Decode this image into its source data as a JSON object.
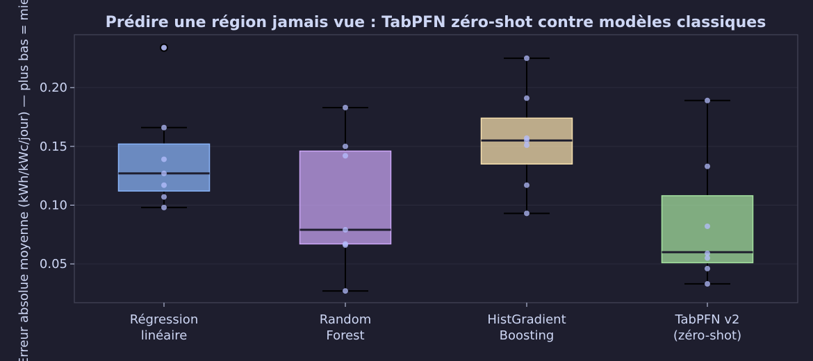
{
  "chart_data": {
    "type": "box",
    "title": "Prédire une région jamais vue : TabPFN zéro-shot contre modèles classiques",
    "xlabel": "",
    "ylabel": "Erreur absolue moyenne (kWh/kWc/jour) — plus bas = mieux",
    "ylim": [
      0.017,
      0.245
    ],
    "yticks": [
      0.05,
      0.1,
      0.15,
      0.2
    ],
    "ytick_labels": [
      "0.05",
      "0.10",
      "0.15",
      "0.20"
    ],
    "grid": true,
    "categories": [
      [
        "Régression",
        "linéaire"
      ],
      [
        "Random",
        "Forest"
      ],
      [
        "HistGradient",
        "Boosting"
      ],
      [
        "TabPFN v2",
        "(zéro-shot)"
      ]
    ],
    "series": [
      {
        "color": "#89b4fa",
        "whisker_low": 0.098,
        "q1": 0.112,
        "median": 0.127,
        "q3": 0.152,
        "whisker_high": 0.166,
        "outliers": [
          0.234
        ],
        "points": [
          0.234,
          0.166,
          0.139,
          0.127,
          0.117,
          0.107,
          0.098
        ]
      },
      {
        "color": "#cba6f7",
        "whisker_low": 0.027,
        "q1": 0.067,
        "median": 0.079,
        "q3": 0.146,
        "whisker_high": 0.183,
        "outliers": [],
        "points": [
          0.183,
          0.15,
          0.142,
          0.079,
          0.067,
          0.066,
          0.027
        ]
      },
      {
        "color": "#f9e2af",
        "whisker_low": 0.093,
        "q1": 0.135,
        "median": 0.155,
        "q3": 0.174,
        "whisker_high": 0.225,
        "outliers": [],
        "points": [
          0.225,
          0.191,
          0.157,
          0.155,
          0.151,
          0.117,
          0.093
        ]
      },
      {
        "color": "#a6e3a1",
        "whisker_low": 0.033,
        "q1": 0.051,
        "median": 0.06,
        "q3": 0.108,
        "whisker_high": 0.189,
        "outliers": [],
        "points": [
          0.189,
          0.133,
          0.082,
          0.059,
          0.055,
          0.046,
          0.033
        ]
      }
    ]
  }
}
